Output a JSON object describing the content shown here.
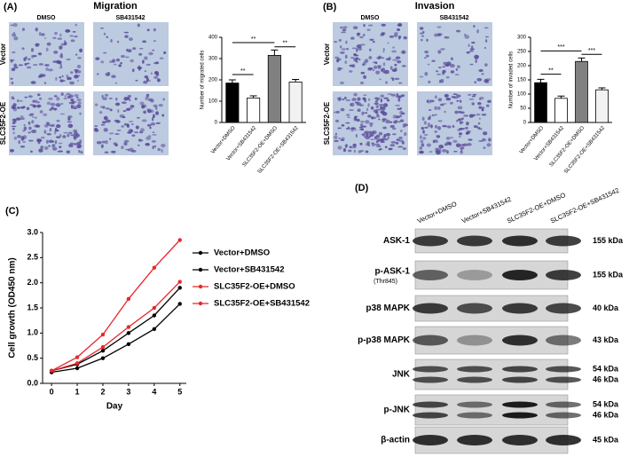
{
  "panels": {
    "a": "(A)",
    "b": "(B)",
    "c": "(C)",
    "d": "(D)"
  },
  "migration": {
    "title": "Migration",
    "columns": [
      "DMSO",
      "SB431542"
    ],
    "rows": [
      "Vector",
      "SLC35F2-OE"
    ]
  },
  "invasion": {
    "title": "Invasion",
    "columns": [
      "DMSO",
      "SB431542"
    ],
    "rows": [
      "Vector",
      "SLC35F2-OE"
    ]
  },
  "chart_data": [
    {
      "type": "bar",
      "y_label": "Number of migrated cells",
      "categories": [
        "Vector+DMSO",
        "Vector+SB431542",
        "SLC35F2-OE+DMSO",
        "SLC35F2-OE+SB431542"
      ],
      "values": [
        185,
        115,
        315,
        190
      ],
      "errors": [
        15,
        10,
        25,
        12
      ],
      "colors": [
        "#000000",
        "#ffffff",
        "#808080",
        "#f2f2f2"
      ],
      "ylim": [
        0,
        400
      ],
      "yticks": [
        0,
        100,
        200,
        300,
        400
      ],
      "annotations": [
        "**",
        "**",
        "**"
      ]
    },
    {
      "type": "bar",
      "y_label": "Number of invaded cells",
      "categories": [
        "Vector+DMSO",
        "Vector+SB431542",
        "SLC35F2-OE+DMSO",
        "SLC35F2-OE+SB431542"
      ],
      "values": [
        140,
        85,
        215,
        115
      ],
      "errors": [
        12,
        8,
        12,
        7
      ],
      "colors": [
        "#000000",
        "#ffffff",
        "#808080",
        "#f2f2f2"
      ],
      "ylim": [
        0,
        300
      ],
      "yticks": [
        0,
        50,
        100,
        150,
        200,
        250,
        300
      ],
      "annotations": [
        "**",
        "***",
        "***"
      ]
    },
    {
      "type": "line",
      "x_label": "Day",
      "y_label": "Cell growth (OD450 nm)",
      "x": [
        0,
        1,
        2,
        3,
        4,
        5
      ],
      "xticks": [
        0,
        1,
        2,
        3,
        4,
        5
      ],
      "xlim": [
        -0.35,
        5.25
      ],
      "ylim": [
        0,
        3
      ],
      "yticks": [
        {
          "value": 0,
          "label": "0.0"
        },
        0.5,
        {
          "value": 1,
          "label": "1.0"
        },
        1.5,
        {
          "value": 2,
          "label": "2.0"
        },
        2.5,
        {
          "value": 3,
          "label": "3.0"
        }
      ],
      "series": [
        {
          "name": "Vector+DMSO",
          "color": "#000000",
          "values": [
            0.25,
            0.38,
            0.65,
            1.0,
            1.35,
            1.9
          ]
        },
        {
          "name": "Vector+SB431542",
          "color": "#000000",
          "values": [
            0.22,
            0.3,
            0.5,
            0.78,
            1.08,
            1.58
          ]
        },
        {
          "name": "SLC35F2-OE+DMSO",
          "color": "#e8262b",
          "values": [
            0.25,
            0.52,
            0.97,
            1.68,
            2.3,
            2.85
          ]
        },
        {
          "name": "SLC35F2-OE+SB431542",
          "color": "#e8262b",
          "values": [
            0.25,
            0.4,
            0.72,
            1.12,
            1.5,
            2.02
          ]
        }
      ]
    }
  ],
  "blot": {
    "columns": [
      "Vector+DMSO",
      "Vector+SB431542",
      "SLC35F2-OE+DMSO",
      "SLC35F2-OE+SB431542"
    ],
    "rows": [
      {
        "label": "ASK-1",
        "kda": [
          "155 kDa"
        ]
      },
      {
        "label": "p-ASK-1",
        "sublabel": "(Thr845)",
        "kda": [
          "155 kDa"
        ]
      },
      {
        "label": "p38 MAPK",
        "kda": [
          "40 kDa"
        ]
      },
      {
        "label": "p-p38 MAPK",
        "kda": [
          "43 kDa"
        ]
      },
      {
        "label": "JNK",
        "kda": [
          "54 kDa",
          "46 kDa"
        ]
      },
      {
        "label": "p-JNK",
        "kda": [
          "54 kDa",
          "46 kDa"
        ]
      },
      {
        "label": "β-actin",
        "kda": [
          "45 kDa"
        ]
      }
    ]
  }
}
